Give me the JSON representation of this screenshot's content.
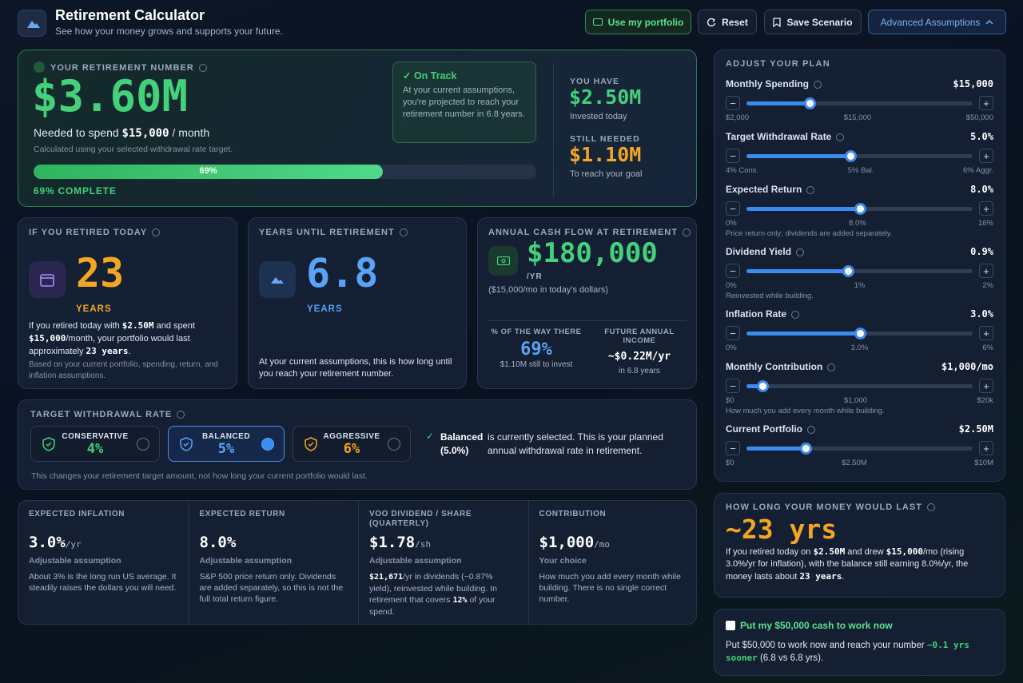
{
  "header": {
    "title": "Retirement Calculator",
    "subtitle": "See how your money grows and supports your future."
  },
  "buttons": [
    "Use my portfolio",
    "Reset",
    "Save Scenario",
    "Advanced Assumptions"
  ],
  "hero": {
    "label": "YOUR RETIREMENT NUMBER",
    "amount": "$3.60M",
    "spend": [
      "Needed to spend ",
      "$15,000",
      " / month"
    ],
    "note": "Calculated using your selected withdrawal rate target.",
    "progress_label": "69%",
    "complete": "69% COMPLETE",
    "status_title": "On Track",
    "status_text": "At your current assumptions, you're projected to reach your retirement number in 6.8 years.",
    "have_label": "YOU HAVE",
    "have_value": "$2.50M",
    "have_sub": "Invested today",
    "needed_label": "STILL NEEDED",
    "needed_value": "$1.10M",
    "needed_sub": "To reach your goal"
  },
  "retired_today": {
    "title": "IF YOU RETIRED TODAY",
    "value": "23",
    "unit": "YEARS",
    "text": [
      "If you retired today with ",
      "$2.50M",
      " and spent ",
      "$15,000",
      "/month, your portfolio would last approximately ",
      "23 years",
      "."
    ],
    "note": "Based on your current portfolio, spending, return, and inflation assumptions."
  },
  "years_until": {
    "title": "YEARS UNTIL RETIREMENT",
    "value": "6.8",
    "unit": "YEARS",
    "text": "At your current assumptions, this is how long until you reach your retirement number."
  },
  "cash_flow": {
    "title": "ANNUAL CASH FLOW AT RETIREMENT",
    "value": "$180,000",
    "unit": "/YR",
    "sub": "($15,000/mo in today's dollars)",
    "way_label": "% OF THE WAY THERE",
    "way_value": "69%",
    "way_sub": "$1.10M still to invest",
    "future_label": "FUTURE ANNUAL INCOME",
    "future_value": "~$0.22M/yr",
    "future_sub": "in 6.8 years"
  },
  "withdrawal": {
    "title": "TARGET WITHDRAWAL RATE",
    "options": [
      {
        "name": "CONSERVATIVE",
        "rate": "4%"
      },
      {
        "name": "BALANCED",
        "rate": "5%"
      },
      {
        "name": "AGGRESSIVE",
        "rate": "6%"
      }
    ],
    "selected_name": "Balanced",
    "selected_rate": "(5.0%)",
    "selected_text": "is currently selected. This is your planned annual withdrawal rate in retirement.",
    "footer": "This changes your retirement target amount, not how long your current portfolio would last."
  },
  "assumptions": [
    {
      "title": "EXPECTED INFLATION",
      "value": "3.0%",
      "unit": "/yr",
      "sub": "Adjustable assumption",
      "text": [
        "About 3% is the long run US average. It steadily raises the dollars you will need."
      ]
    },
    {
      "title": "EXPECTED RETURN",
      "value": "8.0%",
      "sub": "Adjustable assumption",
      "text": [
        "S&P 500 price return only. Dividends are added separately, so this is not the full total return figure."
      ]
    },
    {
      "title": "VOO DIVIDEND / SHARE (QUARTERLY)",
      "value": "$1.78",
      "unit": "/sh",
      "sub": "Adjustable assumption",
      "text": [
        "$21,671",
        "/yr in dividends (~0.87% yield), reinvested while building. In retirement that covers ",
        "12%",
        " of your spend."
      ]
    },
    {
      "title": "CONTRIBUTION",
      "value": "$1,000",
      "unit": "/mo",
      "sub": "Your choice",
      "text": [
        "How much you add every month while building. There is no single correct number."
      ]
    }
  ],
  "adjust": {
    "title": "ADJUST YOUR PLAN",
    "sliders": [
      {
        "label": "Monthly Spending",
        "value": "$15,000",
        "min": "$2,000",
        "mid": "$15,000",
        "max": "$50,000"
      },
      {
        "label": "Target Withdrawal Rate",
        "value": "5.0%",
        "min": "4% Cons.",
        "mid": "5% Bal.",
        "max": "6% Aggr."
      },
      {
        "label": "Expected Return",
        "value": "8.0%",
        "min": "0%",
        "mid": "8.0%",
        "max": "16%",
        "note": "Price return only; dividends are added separately."
      },
      {
        "label": "Dividend Yield",
        "value": "0.9%",
        "min": "0%",
        "mid": "1%",
        "max": "2%",
        "note": "Reinvested while building."
      },
      {
        "label": "Inflation Rate",
        "value": "3.0%",
        "min": "0%",
        "mid": "3.0%",
        "max": "6%"
      },
      {
        "label": "Monthly Contribution",
        "value": "$1,000/mo",
        "min": "$0",
        "mid": "$1,000",
        "max": "$20k",
        "note": "How much you add every month while building."
      },
      {
        "label": "Current Portfolio",
        "value": "$2.50M",
        "min": "$0",
        "mid": "$2.50M",
        "max": "$10M"
      }
    ]
  },
  "longevity": {
    "title": "HOW LONG YOUR MONEY WOULD LAST",
    "value": "~23 yrs",
    "text": [
      "If you retired today on ",
      "$2.50M",
      " and drew ",
      "$15,000",
      "/mo (rising 3.0%/yr for inflation), with the balance still earning 8.0%/yr, the money lasts about ",
      "23 years",
      "."
    ]
  },
  "cash": {
    "checkbox": "Put my $50,000 cash to work now",
    "text": [
      "Put $50,000 to work now and reach your number ",
      "~0.1 yrs sooner",
      " (6.8 vs 6.8 yrs)."
    ]
  }
}
